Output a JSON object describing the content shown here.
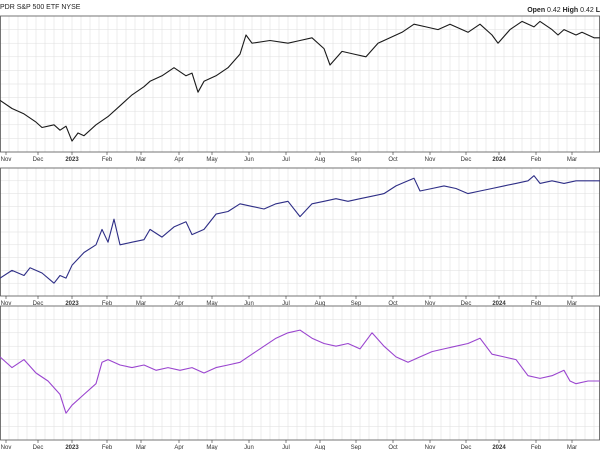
{
  "header": {
    "symbol_text": "PDR S&P 500 ETF",
    "exchange": "NYSE",
    "open_label": "Open",
    "open_value": "0.42",
    "high_label": "High",
    "high_value": "0.42",
    "trailing_text": "L"
  },
  "colors": {
    "panel1_line": "#1a1a1a",
    "panel2_line": "#2e2e86",
    "panel3_line": "#9a45cf",
    "grid": "#dddddd",
    "border": "#555555"
  },
  "chart_data": [
    {
      "type": "line",
      "series": [
        {
          "values": [
            [
              0.0,
              0.38
            ],
            [
              0.02,
              0.32
            ],
            [
              0.04,
              0.28
            ],
            [
              0.06,
              0.22
            ],
            [
              0.07,
              0.18
            ],
            [
              0.09,
              0.2
            ],
            [
              0.1,
              0.16
            ],
            [
              0.11,
              0.19
            ],
            [
              0.12,
              0.08
            ],
            [
              0.13,
              0.14
            ],
            [
              0.14,
              0.12
            ],
            [
              0.16,
              0.2
            ],
            [
              0.18,
              0.26
            ],
            [
              0.2,
              0.34
            ],
            [
              0.22,
              0.42
            ],
            [
              0.24,
              0.48
            ],
            [
              0.25,
              0.52
            ],
            [
              0.27,
              0.56
            ],
            [
              0.29,
              0.62
            ],
            [
              0.31,
              0.56
            ],
            [
              0.32,
              0.58
            ],
            [
              0.33,
              0.44
            ],
            [
              0.34,
              0.52
            ],
            [
              0.36,
              0.56
            ],
            [
              0.38,
              0.62
            ],
            [
              0.4,
              0.72
            ],
            [
              0.41,
              0.86
            ],
            [
              0.42,
              0.8
            ],
            [
              0.45,
              0.82
            ],
            [
              0.48,
              0.8
            ],
            [
              0.5,
              0.82
            ],
            [
              0.52,
              0.84
            ],
            [
              0.54,
              0.76
            ],
            [
              0.55,
              0.64
            ],
            [
              0.57,
              0.74
            ],
            [
              0.59,
              0.72
            ],
            [
              0.61,
              0.7
            ],
            [
              0.63,
              0.8
            ],
            [
              0.65,
              0.84
            ],
            [
              0.67,
              0.88
            ],
            [
              0.69,
              0.94
            ],
            [
              0.71,
              0.92
            ],
            [
              0.73,
              0.9
            ],
            [
              0.75,
              0.94
            ],
            [
              0.78,
              0.88
            ],
            [
              0.8,
              0.94
            ],
            [
              0.82,
              0.86
            ],
            [
              0.83,
              0.8
            ],
            [
              0.85,
              0.9
            ],
            [
              0.87,
              0.96
            ],
            [
              0.89,
              0.92
            ],
            [
              0.9,
              0.96
            ],
            [
              0.92,
              0.9
            ],
            [
              0.93,
              0.86
            ],
            [
              0.94,
              0.9
            ],
            [
              0.96,
              0.86
            ],
            [
              0.97,
              0.88
            ],
            [
              0.99,
              0.84
            ],
            [
              1.0,
              0.84
            ]
          ]
        }
      ]
    },
    {
      "type": "line",
      "series": [
        {
          "values": [
            [
              0.0,
              0.14
            ],
            [
              0.02,
              0.2
            ],
            [
              0.04,
              0.16
            ],
            [
              0.05,
              0.22
            ],
            [
              0.07,
              0.18
            ],
            [
              0.09,
              0.1
            ],
            [
              0.1,
              0.16
            ],
            [
              0.11,
              0.14
            ],
            [
              0.12,
              0.24
            ],
            [
              0.14,
              0.34
            ],
            [
              0.16,
              0.4
            ],
            [
              0.17,
              0.52
            ],
            [
              0.18,
              0.42
            ],
            [
              0.19,
              0.6
            ],
            [
              0.2,
              0.4
            ],
            [
              0.22,
              0.42
            ],
            [
              0.24,
              0.44
            ],
            [
              0.25,
              0.52
            ],
            [
              0.27,
              0.46
            ],
            [
              0.29,
              0.54
            ],
            [
              0.31,
              0.58
            ],
            [
              0.32,
              0.48
            ],
            [
              0.34,
              0.52
            ],
            [
              0.36,
              0.64
            ],
            [
              0.38,
              0.66
            ],
            [
              0.4,
              0.72
            ],
            [
              0.42,
              0.7
            ],
            [
              0.44,
              0.68
            ],
            [
              0.46,
              0.72
            ],
            [
              0.48,
              0.74
            ],
            [
              0.5,
              0.62
            ],
            [
              0.52,
              0.72
            ],
            [
              0.54,
              0.74
            ],
            [
              0.56,
              0.76
            ],
            [
              0.58,
              0.74
            ],
            [
              0.6,
              0.76
            ],
            [
              0.62,
              0.78
            ],
            [
              0.64,
              0.8
            ],
            [
              0.66,
              0.86
            ],
            [
              0.68,
              0.9
            ],
            [
              0.69,
              0.92
            ],
            [
              0.7,
              0.82
            ],
            [
              0.72,
              0.84
            ],
            [
              0.74,
              0.86
            ],
            [
              0.76,
              0.84
            ],
            [
              0.78,
              0.8
            ],
            [
              0.8,
              0.82
            ],
            [
              0.82,
              0.84
            ],
            [
              0.84,
              0.86
            ],
            [
              0.86,
              0.88
            ],
            [
              0.88,
              0.9
            ],
            [
              0.89,
              0.94
            ],
            [
              0.9,
              0.88
            ],
            [
              0.92,
              0.9
            ],
            [
              0.94,
              0.88
            ],
            [
              0.96,
              0.9
            ],
            [
              0.98,
              0.9
            ],
            [
              1.0,
              0.9
            ]
          ]
        }
      ]
    },
    {
      "type": "line",
      "series": [
        {
          "values": [
            [
              0.0,
              0.62
            ],
            [
              0.02,
              0.54
            ],
            [
              0.04,
              0.6
            ],
            [
              0.06,
              0.5
            ],
            [
              0.08,
              0.44
            ],
            [
              0.1,
              0.34
            ],
            [
              0.11,
              0.2
            ],
            [
              0.12,
              0.26
            ],
            [
              0.14,
              0.34
            ],
            [
              0.16,
              0.42
            ],
            [
              0.17,
              0.58
            ],
            [
              0.18,
              0.6
            ],
            [
              0.2,
              0.56
            ],
            [
              0.22,
              0.54
            ],
            [
              0.24,
              0.56
            ],
            [
              0.26,
              0.52
            ],
            [
              0.28,
              0.54
            ],
            [
              0.3,
              0.52
            ],
            [
              0.32,
              0.54
            ],
            [
              0.34,
              0.5
            ],
            [
              0.36,
              0.54
            ],
            [
              0.38,
              0.56
            ],
            [
              0.4,
              0.58
            ],
            [
              0.42,
              0.64
            ],
            [
              0.44,
              0.7
            ],
            [
              0.46,
              0.76
            ],
            [
              0.48,
              0.8
            ],
            [
              0.5,
              0.82
            ],
            [
              0.52,
              0.76
            ],
            [
              0.54,
              0.72
            ],
            [
              0.56,
              0.7
            ],
            [
              0.58,
              0.72
            ],
            [
              0.6,
              0.68
            ],
            [
              0.62,
              0.8
            ],
            [
              0.64,
              0.7
            ],
            [
              0.66,
              0.62
            ],
            [
              0.68,
              0.58
            ],
            [
              0.7,
              0.62
            ],
            [
              0.72,
              0.66
            ],
            [
              0.74,
              0.68
            ],
            [
              0.76,
              0.7
            ],
            [
              0.78,
              0.72
            ],
            [
              0.8,
              0.76
            ],
            [
              0.82,
              0.64
            ],
            [
              0.84,
              0.62
            ],
            [
              0.86,
              0.6
            ],
            [
              0.88,
              0.48
            ],
            [
              0.9,
              0.46
            ],
            [
              0.92,
              0.48
            ],
            [
              0.94,
              0.52
            ],
            [
              0.95,
              0.44
            ],
            [
              0.96,
              0.42
            ],
            [
              0.98,
              0.44
            ],
            [
              1.0,
              0.44
            ]
          ]
        }
      ]
    }
  ],
  "x_ticks": [
    "Nov",
    "Dec",
    "2023",
    "Feb",
    "Mar",
    "Apr",
    "May",
    "Jun",
    "Jul",
    "Aug",
    "Sep",
    "Oct",
    "Nov",
    "Dec",
    "2024",
    "Feb",
    "Mar"
  ]
}
